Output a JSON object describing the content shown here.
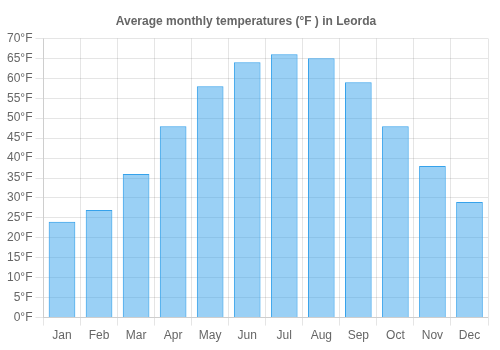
{
  "chart_data": {
    "type": "bar",
    "title": "Average monthly temperatures (°F ) in Leorda",
    "categories": [
      "Jan",
      "Feb",
      "Mar",
      "Apr",
      "May",
      "Jun",
      "Jul",
      "Aug",
      "Sep",
      "Oct",
      "Nov",
      "Dec"
    ],
    "values": [
      24,
      27,
      36,
      48,
      58,
      64,
      66,
      65,
      59,
      48,
      38,
      29
    ],
    "ylim": [
      0,
      70
    ],
    "yticks": [
      {
        "value": 0,
        "label": "0°F"
      },
      {
        "value": 5,
        "label": "5°F"
      },
      {
        "value": 10,
        "label": "10°F"
      },
      {
        "value": 15,
        "label": "15°F"
      },
      {
        "value": 20,
        "label": "20°F"
      },
      {
        "value": 25,
        "label": "25°F"
      },
      {
        "value": 30,
        "label": "30°F"
      },
      {
        "value": 35,
        "label": "35°F"
      },
      {
        "value": 40,
        "label": "40°F"
      },
      {
        "value": 45,
        "label": "45°F"
      },
      {
        "value": 50,
        "label": "50°F"
      },
      {
        "value": 55,
        "label": "55°F"
      },
      {
        "value": 60,
        "label": "60°F"
      },
      {
        "value": 65,
        "label": "65°F"
      },
      {
        "value": 70,
        "label": "70°F"
      }
    ],
    "grid": true
  }
}
